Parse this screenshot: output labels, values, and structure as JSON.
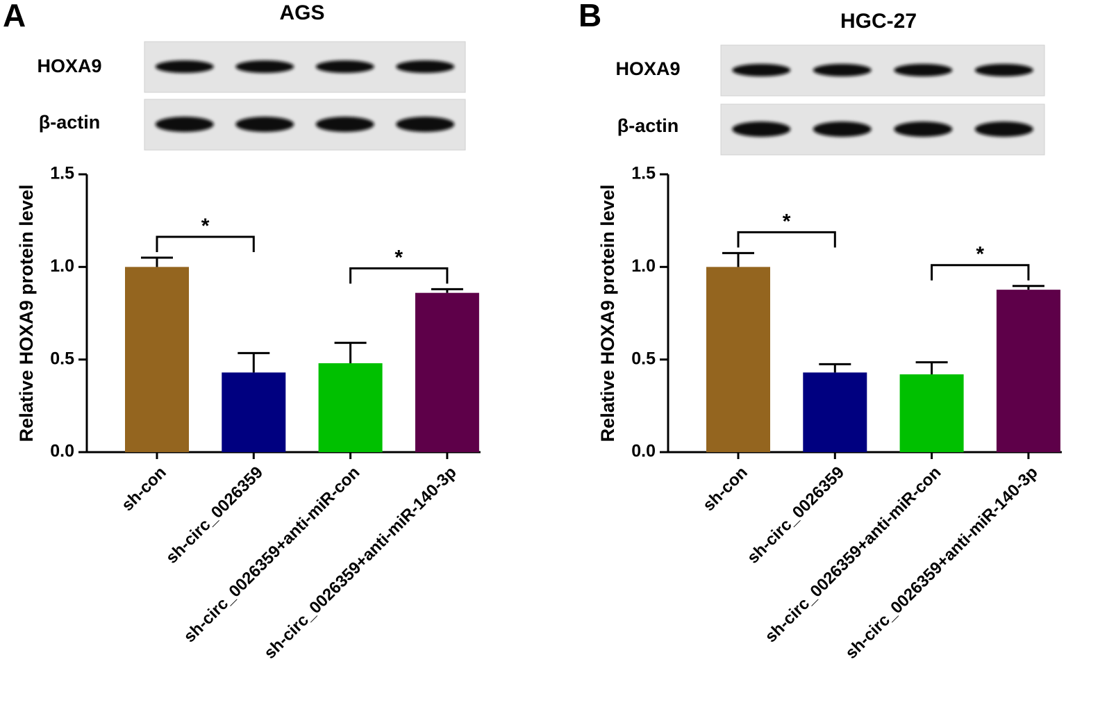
{
  "chart_data": [
    {
      "type": "bar",
      "panel": "A",
      "title": "AGS",
      "blot_labels": [
        "HOXA9",
        "β-actin"
      ],
      "y_label": "Relative HOXA9 protein level",
      "categories": [
        "sh-con",
        "sh-circ_0026359",
        "sh-circ_0026359+anti-miR-con",
        "sh-circ_0026359+anti-miR-140-3p"
      ],
      "values": [
        1.0,
        0.43,
        0.48,
        0.86
      ],
      "errors": [
        0.05,
        0.105,
        0.11,
        0.02
      ],
      "colors": [
        "#94651f",
        "#000080",
        "#00c000",
        "#5e0049"
      ],
      "ylim": [
        0,
        1.5
      ],
      "yticks": [
        {
          "value": 0,
          "label": "0.0"
        },
        0.5,
        {
          "value": 1,
          "label": "1.0"
        },
        1.5
      ],
      "significance": [
        {
          "from": 0,
          "to": 1,
          "label": "*"
        },
        {
          "from": 2,
          "to": 3,
          "label": "*"
        }
      ]
    },
    {
      "type": "bar",
      "panel": "B",
      "title": "HGC-27",
      "blot_labels": [
        "HOXA9",
        "β-actin"
      ],
      "y_label": "Relative HOXA9 protein level",
      "categories": [
        "sh-con",
        "sh-circ_0026359",
        "sh-circ_0026359+anti-miR-con",
        "sh-circ_0026359+anti-miR-140-3p"
      ],
      "values": [
        1.0,
        0.43,
        0.42,
        0.877
      ],
      "errors": [
        0.075,
        0.045,
        0.065,
        0.02
      ],
      "colors": [
        "#94651f",
        "#000080",
        "#00c000",
        "#5e0049"
      ],
      "ylim": [
        0,
        1.5
      ],
      "yticks": [
        {
          "value": 0,
          "label": "0.0"
        },
        0.5,
        {
          "value": 1,
          "label": "1.0"
        },
        1.5
      ],
      "significance": [
        {
          "from": 0,
          "to": 1,
          "label": "*"
        },
        {
          "from": 2,
          "to": 3,
          "label": "*"
        }
      ]
    }
  ]
}
